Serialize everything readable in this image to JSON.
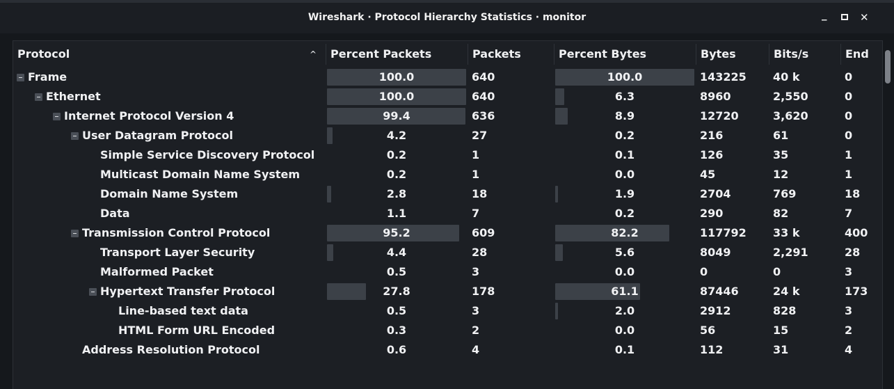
{
  "window": {
    "title": "Wireshark · Protocol Hierarchy Statistics · monitor",
    "minimize": "_",
    "close": "✕"
  },
  "columns": [
    "Protocol",
    "Percent Packets",
    "Packets",
    "Percent Bytes",
    "Bytes",
    "Bits/s",
    "End"
  ],
  "sort_indicator": "^",
  "rows": [
    {
      "protocol": "Frame",
      "level": 0,
      "expandable": true,
      "pct_packets": "100.0",
      "packets": "640",
      "pct_bytes": "100.0",
      "bytes": "143225",
      "bits_s": "40 k",
      "end": "0"
    },
    {
      "protocol": "Ethernet",
      "level": 1,
      "expandable": true,
      "pct_packets": "100.0",
      "packets": "640",
      "pct_bytes": "6.3",
      "bytes": "8960",
      "bits_s": "2,550",
      "end": "0"
    },
    {
      "protocol": "Internet Protocol Version 4",
      "level": 2,
      "expandable": true,
      "pct_packets": "99.4",
      "packets": "636",
      "pct_bytes": "8.9",
      "bytes": "12720",
      "bits_s": "3,620",
      "end": "0"
    },
    {
      "protocol": "User Datagram Protocol",
      "level": 3,
      "expandable": true,
      "pct_packets": "4.2",
      "packets": "27",
      "pct_bytes": "0.2",
      "bytes": "216",
      "bits_s": "61",
      "end": "0"
    },
    {
      "protocol": "Simple Service Discovery Protocol",
      "level": 4,
      "expandable": false,
      "pct_packets": "0.2",
      "packets": "1",
      "pct_bytes": "0.1",
      "bytes": "126",
      "bits_s": "35",
      "end": "1"
    },
    {
      "protocol": "Multicast Domain Name System",
      "level": 4,
      "expandable": false,
      "pct_packets": "0.2",
      "packets": "1",
      "pct_bytes": "0.0",
      "bytes": "45",
      "bits_s": "12",
      "end": "1"
    },
    {
      "protocol": "Domain Name System",
      "level": 4,
      "expandable": false,
      "pct_packets": "2.8",
      "packets": "18",
      "pct_bytes": "1.9",
      "bytes": "2704",
      "bits_s": "769",
      "end": "18"
    },
    {
      "protocol": "Data",
      "level": 4,
      "expandable": false,
      "pct_packets": "1.1",
      "packets": "7",
      "pct_bytes": "0.2",
      "bytes": "290",
      "bits_s": "82",
      "end": "7"
    },
    {
      "protocol": "Transmission Control Protocol",
      "level": 3,
      "expandable": true,
      "pct_packets": "95.2",
      "packets": "609",
      "pct_bytes": "82.2",
      "bytes": "117792",
      "bits_s": "33 k",
      "end": "400"
    },
    {
      "protocol": "Transport Layer Security",
      "level": 4,
      "expandable": false,
      "pct_packets": "4.4",
      "packets": "28",
      "pct_bytes": "5.6",
      "bytes": "8049",
      "bits_s": "2,291",
      "end": "28"
    },
    {
      "protocol": "Malformed Packet",
      "level": 4,
      "expandable": false,
      "pct_packets": "0.5",
      "packets": "3",
      "pct_bytes": "0.0",
      "bytes": "0",
      "bits_s": "0",
      "end": "3"
    },
    {
      "protocol": "Hypertext Transfer Protocol",
      "level": 4,
      "expandable": true,
      "pct_packets": "27.8",
      "packets": "178",
      "pct_bytes": "61.1",
      "bytes": "87446",
      "bits_s": "24 k",
      "end": "173"
    },
    {
      "protocol": "Line-based text data",
      "level": 5,
      "expandable": false,
      "pct_packets": "0.5",
      "packets": "3",
      "pct_bytes": "2.0",
      "bytes": "2912",
      "bits_s": "828",
      "end": "3"
    },
    {
      "protocol": "HTML Form URL Encoded",
      "level": 5,
      "expandable": false,
      "pct_packets": "0.3",
      "packets": "2",
      "pct_bytes": "0.0",
      "bytes": "56",
      "bits_s": "15",
      "end": "2"
    },
    {
      "protocol": "Address Resolution Protocol",
      "level": 3,
      "expandable": false,
      "pct_packets": "0.6",
      "packets": "4",
      "pct_bytes": "0.1",
      "bytes": "112",
      "bits_s": "31",
      "end": "4"
    }
  ],
  "icons": {
    "expand_toggle": "minus-box-icon",
    "sort": "sort-ascending-icon"
  },
  "colors": {
    "background": "#1c1f24",
    "bar": "#3c4148",
    "text": "#f0f1f3"
  }
}
